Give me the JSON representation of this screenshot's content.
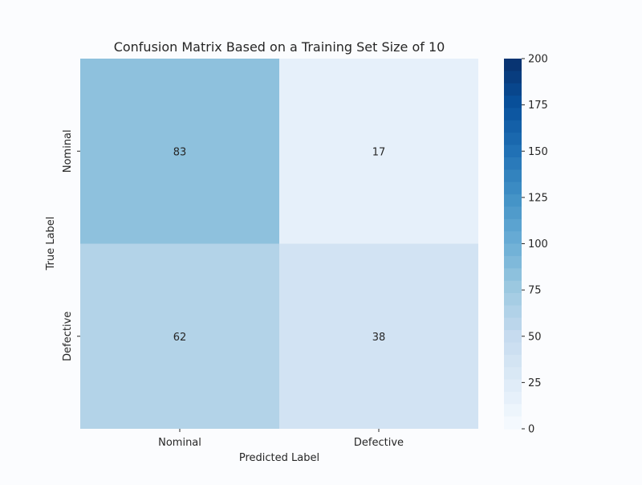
{
  "chart_data": {
    "type": "heatmap",
    "title": "Confusion Matrix Based on a Training Set Size of 10",
    "xlabel": "Predicted Label",
    "ylabel": "True Label",
    "x_categories": [
      "Nominal",
      "Defective"
    ],
    "y_categories": [
      "Nominal",
      "Defective"
    ],
    "values": [
      [
        83,
        17
      ],
      [
        62,
        38
      ]
    ],
    "colorbar": {
      "range": [
        0,
        200
      ],
      "ticks": [
        0,
        25,
        50,
        75,
        100,
        125,
        150,
        175,
        200
      ],
      "colormap": "Blues",
      "colors": [
        "#f7fbff",
        "#deebf7",
        "#c6dbef",
        "#9ecae1",
        "#6baed6",
        "#4292c6",
        "#2171b5",
        "#08519c",
        "#08306b"
      ]
    },
    "grid": false,
    "legend": "colorbar right"
  }
}
